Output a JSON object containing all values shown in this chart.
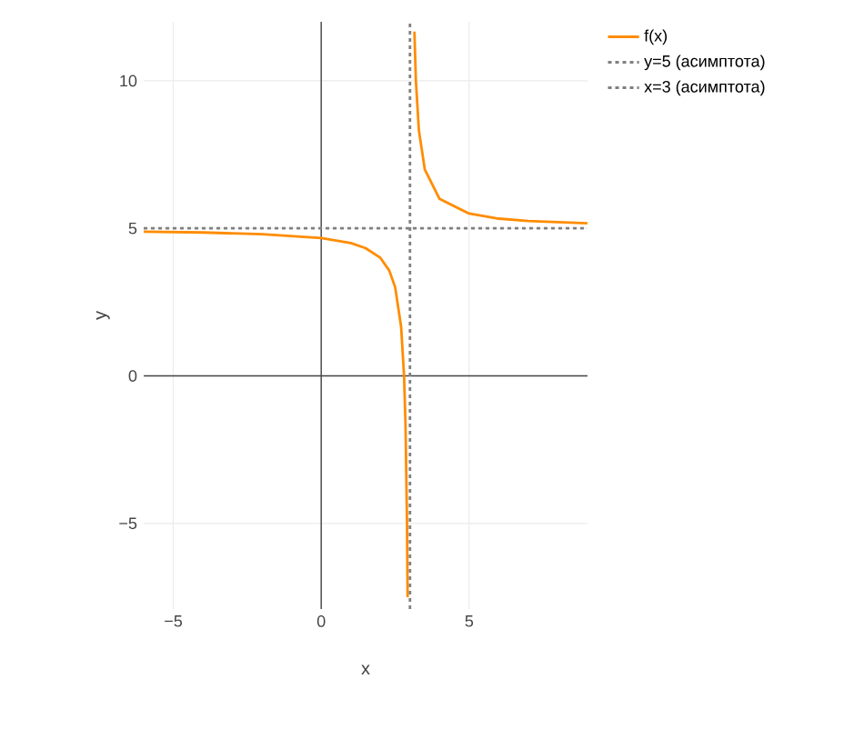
{
  "chart_data": {
    "type": "line",
    "xlabel": "x",
    "ylabel": "y",
    "xlim": [
      -6,
      9
    ],
    "ylim": [
      -7.9,
      12
    ],
    "xticks": [
      {
        "value": -5,
        "label": "−5"
      },
      0,
      5
    ],
    "yticks": [
      {
        "value": -5,
        "label": "−5"
      },
      0,
      5,
      10
    ],
    "grid": true,
    "legend": "top right",
    "series": [
      {
        "name": "f(x)",
        "color": "#ff8c00",
        "line_style": "solid",
        "x": [
          -6,
          -4,
          -2,
          0,
          1,
          1.5,
          2,
          2.3,
          2.5,
          2.7,
          2.8,
          2.85,
          2.9,
          2.92,
          3,
          3.15,
          3.2,
          3.3,
          3.5,
          4,
          5,
          6,
          7,
          9
        ],
        "values": [
          4.89,
          4.86,
          4.8,
          4.67,
          4.5,
          4.33,
          4,
          3.57,
          3,
          1.67,
          0,
          -1.67,
          -5,
          -7.5,
          null,
          11.67,
          10,
          8.33,
          7,
          6,
          5.5,
          5.33,
          5.25,
          5.17
        ]
      },
      {
        "name": "y=5 (асимптота)",
        "color": "#808080",
        "line_style": "dotted",
        "x": [
          -6,
          9
        ],
        "values": [
          5,
          5
        ]
      },
      {
        "name": "x=3 (асимптота)",
        "color": "#808080",
        "line_style": "dotted",
        "x": [
          3,
          3
        ],
        "values": [
          -7.9,
          12
        ]
      }
    ]
  }
}
